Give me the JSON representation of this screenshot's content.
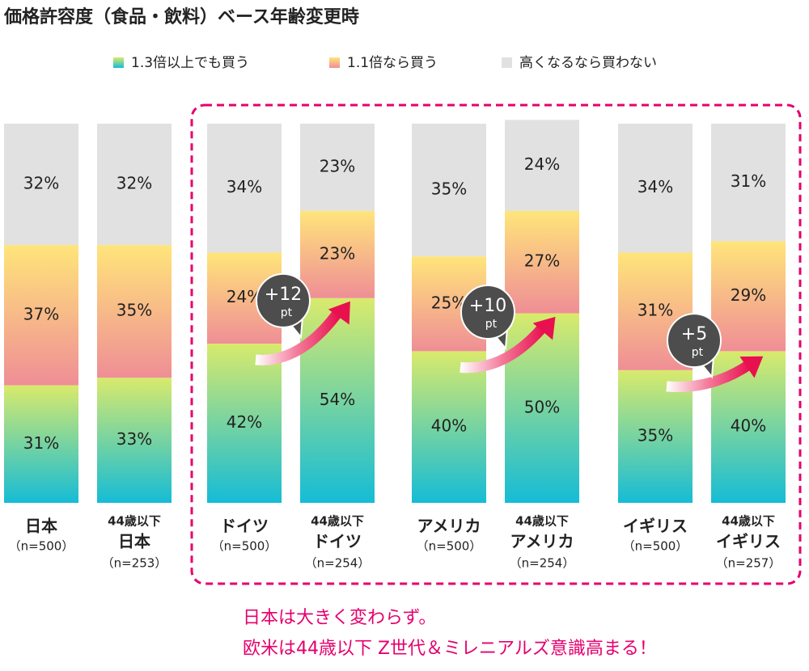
{
  "chart_data": {
    "type": "stacked_bar",
    "title": "価格許容度（食品・飲料）ベース年齢変更時",
    "categories": [
      [
        "日本"
      ],
      [
        "44歳以下",
        "日本"
      ],
      [
        "ドイツ"
      ],
      [
        "44歳以下",
        "ドイツ"
      ],
      [
        "アメリカ"
      ],
      [
        "44歳以下",
        "アメリカ"
      ],
      [
        "イギリス"
      ],
      [
        "44歳以下",
        "イギリス"
      ]
    ],
    "sample_sizes": [
      "（n=500）",
      "（n=253）",
      "（n=500）",
      "（n=254）",
      "（n=500）",
      "（n=254）",
      "（n=500）",
      "（n=257）"
    ],
    "category_colors": [
      "#e5006e",
      "#e5006e",
      "#222222",
      "#222222",
      "#222222",
      "#222222",
      "#222222",
      "#222222"
    ],
    "series": [
      {
        "name": "1.3倍以上でも買う",
        "colors": [
          "#d9ea6c",
          "#15bcd6"
        ],
        "values": [
          31,
          33,
          42,
          54,
          40,
          50,
          35,
          40
        ],
        "value_labels": [
          "31%",
          "33%",
          "42%",
          "54%",
          "40%",
          "50%",
          "35%",
          "40%"
        ]
      },
      {
        "name": "1.1倍なら買う",
        "colors": [
          "#ffe57a",
          "#ef8e96"
        ],
        "values": [
          37,
          35,
          24,
          23,
          25,
          27,
          31,
          29
        ],
        "value_labels": [
          "37%",
          "35%",
          "24%",
          "23%",
          "25%",
          "27%",
          "31%",
          "29%"
        ]
      },
      {
        "name": "高くなるなら買わない",
        "colors": [
          "#e1e1e1",
          "#e1e1e1"
        ],
        "values": [
          32,
          32,
          34,
          23,
          35,
          24,
          34,
          31
        ],
        "value_labels": [
          "32%",
          "32%",
          "34%",
          "23%",
          "35%",
          "24%",
          "34%",
          "31%"
        ]
      }
    ],
    "ylim": [
      0,
      100
    ],
    "annotations": [
      {
        "label": "+12",
        "unit": "pt"
      },
      {
        "label": "+10",
        "unit": "pt"
      },
      {
        "label": "+5",
        "unit": "pt"
      }
    ],
    "footnote": [
      "日本は大きく変わらず。",
      "欧米は44歳以下 Z世代＆ミレニアルズ意識高まる！"
    ],
    "footnote_color": "#e5006e"
  }
}
